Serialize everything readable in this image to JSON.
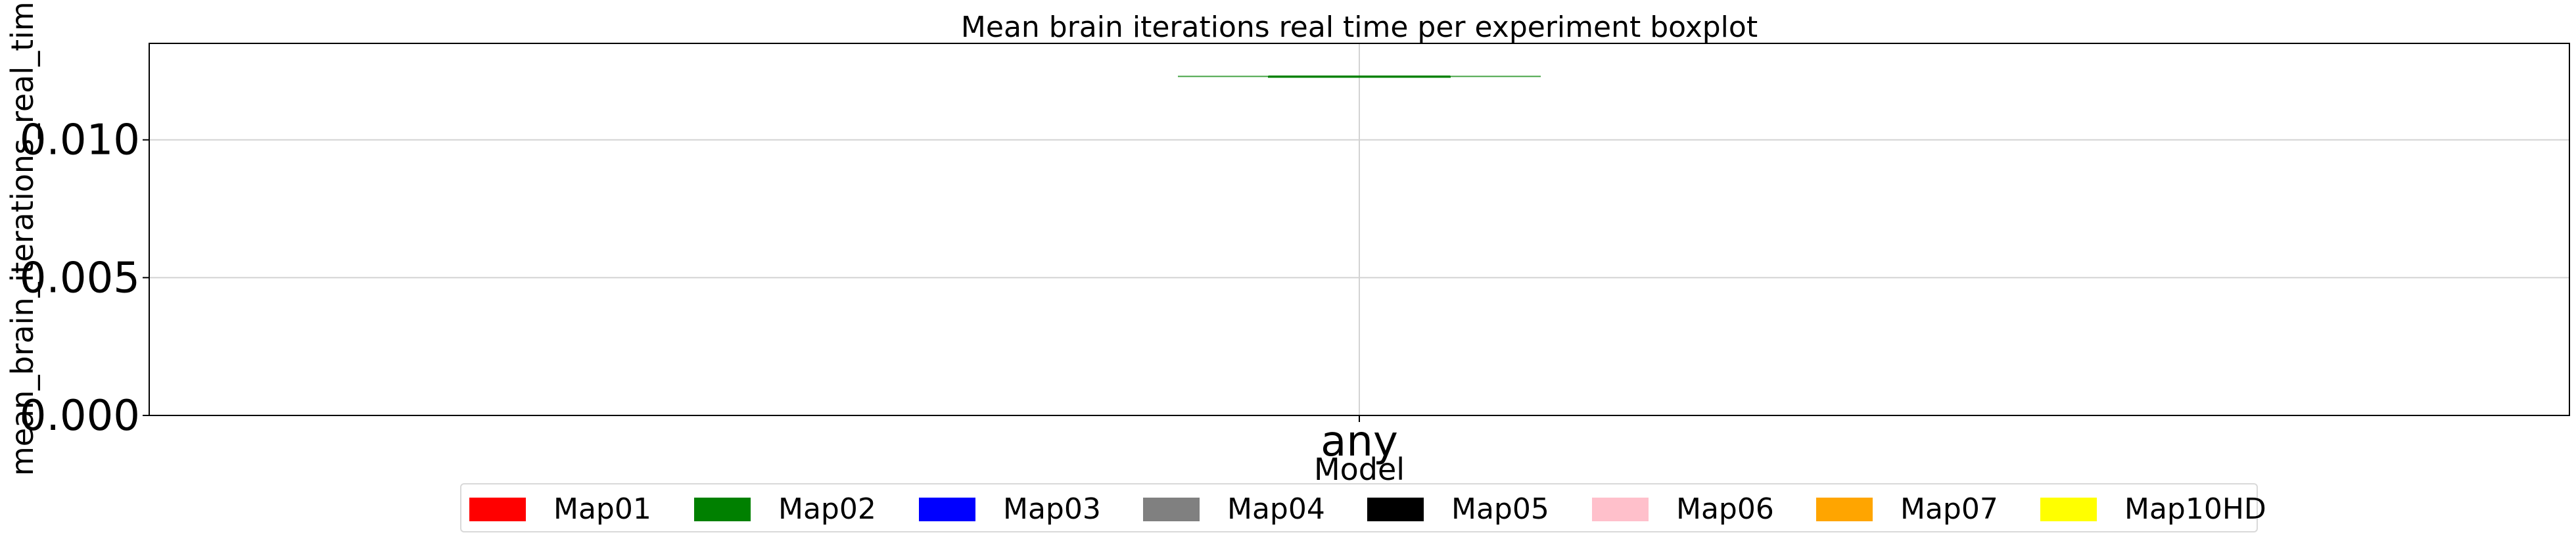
{
  "chart_data": {
    "type": "boxplot",
    "title": "Mean brain iterations real time per experiment boxplot",
    "xlabel": "Model",
    "ylabel": "mean_brain_iterations_real_time",
    "categories": [
      "any"
    ],
    "ylim": [
      0,
      0.0135
    ],
    "yticks": [
      0.0,
      0.005,
      0.01
    ],
    "ytick_labels": [
      "0.000",
      "0.005",
      "0.010"
    ],
    "grid": true,
    "series": [
      {
        "name": "Map02",
        "category": "any",
        "min": 0.0123,
        "q1": 0.0123,
        "median": 0.0123,
        "q3": 0.0123,
        "max": 0.0123,
        "color": "#008000"
      }
    ],
    "legend": {
      "placement": "bottom-center",
      "entries": [
        {
          "label": "Map01",
          "color": "#ff0000"
        },
        {
          "label": "Map02",
          "color": "#008000"
        },
        {
          "label": "Map03",
          "color": "#0000ff"
        },
        {
          "label": "Map04",
          "color": "#808080"
        },
        {
          "label": "Map05",
          "color": "#000000"
        },
        {
          "label": "Map06",
          "color": "#ffc0cb"
        },
        {
          "label": "Map07",
          "color": "#ffa500"
        },
        {
          "label": "Map10HD",
          "color": "#ffff00"
        }
      ]
    }
  }
}
